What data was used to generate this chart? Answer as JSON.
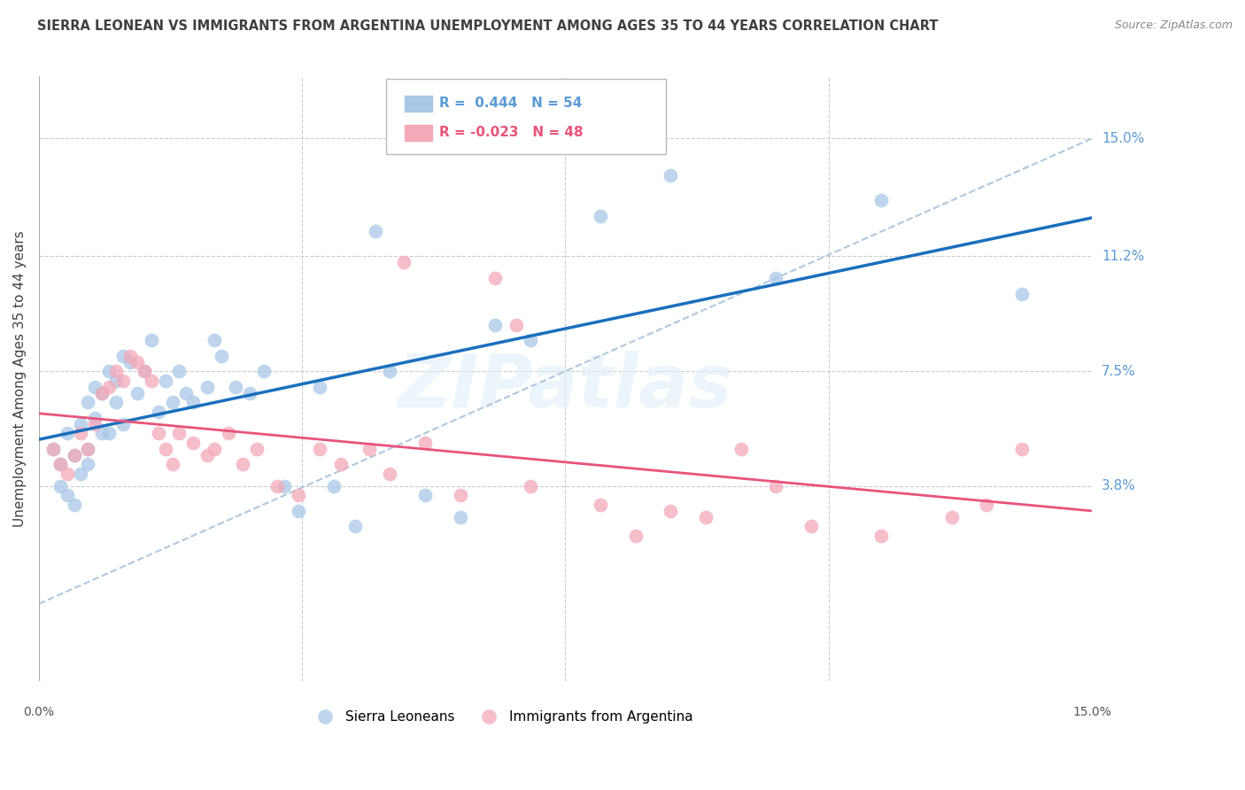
{
  "title": "SIERRA LEONEAN VS IMMIGRANTS FROM ARGENTINA UNEMPLOYMENT AMONG AGES 35 TO 44 YEARS CORRELATION CHART",
  "source": "Source: ZipAtlas.com",
  "ylabel": "Unemployment Among Ages 35 to 44 years",
  "xlim": [
    0.0,
    15.0
  ],
  "ylim": [
    -2.5,
    17.0
  ],
  "yticks": [
    3.8,
    7.5,
    11.2,
    15.0
  ],
  "ytick_labels": [
    "3.8%",
    "7.5%",
    "11.2%",
    "15.0%"
  ],
  "legend1_label": "R =  0.444   N = 54",
  "legend2_label": "R = -0.023   N = 48",
  "legend1_color": "#a8c8e8",
  "legend2_color": "#f4a8b8",
  "blue_line_color": "#1a6fbd",
  "pink_line_color": "#e8547a",
  "dashed_line_color": "#b0c8dc",
  "watermark": "ZIPatlas",
  "background_color": "#ffffff",
  "grid_color": "#cccccc",
  "title_color": "#404040",
  "legend_color1": "#5b9bd5",
  "legend_color2": "#e8547a",
  "blue_x": [
    0.2,
    0.3,
    0.3,
    0.4,
    0.4,
    0.5,
    0.5,
    0.6,
    0.6,
    0.7,
    0.7,
    0.7,
    0.8,
    0.8,
    0.9,
    0.9,
    1.0,
    1.0,
    1.1,
    1.1,
    1.2,
    1.2,
    1.3,
    1.4,
    1.5,
    1.6,
    1.7,
    1.8,
    1.9,
    2.0,
    2.1,
    2.2,
    2.4,
    2.5,
    2.6,
    2.8,
    3.0,
    3.2,
    3.5,
    3.7,
    4.0,
    4.2,
    4.5,
    4.8,
    5.0,
    5.5,
    6.0,
    6.5,
    7.0,
    8.0,
    9.0,
    10.5,
    12.0,
    14.0
  ],
  "blue_y": [
    5.0,
    4.5,
    3.8,
    3.5,
    5.5,
    3.2,
    4.8,
    4.2,
    5.8,
    4.5,
    6.5,
    5.0,
    7.0,
    6.0,
    5.5,
    6.8,
    7.5,
    5.5,
    7.2,
    6.5,
    8.0,
    5.8,
    7.8,
    6.8,
    7.5,
    8.5,
    6.2,
    7.2,
    6.5,
    7.5,
    6.8,
    6.5,
    7.0,
    8.5,
    8.0,
    7.0,
    6.8,
    7.5,
    3.8,
    3.0,
    7.0,
    3.8,
    2.5,
    12.0,
    7.5,
    3.5,
    2.8,
    9.0,
    8.5,
    12.5,
    13.8,
    10.5,
    13.0,
    10.0
  ],
  "pink_x": [
    0.2,
    0.3,
    0.4,
    0.5,
    0.6,
    0.7,
    0.8,
    0.9,
    1.0,
    1.1,
    1.2,
    1.3,
    1.4,
    1.5,
    1.6,
    1.7,
    1.8,
    1.9,
    2.0,
    2.2,
    2.4,
    2.5,
    2.7,
    2.9,
    3.1,
    3.4,
    3.7,
    4.0,
    4.3,
    4.7,
    5.0,
    5.5,
    6.0,
    6.5,
    7.0,
    8.0,
    9.0,
    9.5,
    10.0,
    10.5,
    11.0,
    12.0,
    13.0,
    13.5,
    14.0,
    5.2,
    6.8,
    8.5
  ],
  "pink_y": [
    5.0,
    4.5,
    4.2,
    4.8,
    5.5,
    5.0,
    5.8,
    6.8,
    7.0,
    7.5,
    7.2,
    8.0,
    7.8,
    7.5,
    7.2,
    5.5,
    5.0,
    4.5,
    5.5,
    5.2,
    4.8,
    5.0,
    5.5,
    4.5,
    5.0,
    3.8,
    3.5,
    5.0,
    4.5,
    5.0,
    4.2,
    5.2,
    3.5,
    10.5,
    3.8,
    3.2,
    3.0,
    2.8,
    5.0,
    3.8,
    2.5,
    2.2,
    2.8,
    3.2,
    5.0,
    11.0,
    9.0,
    2.2
  ]
}
